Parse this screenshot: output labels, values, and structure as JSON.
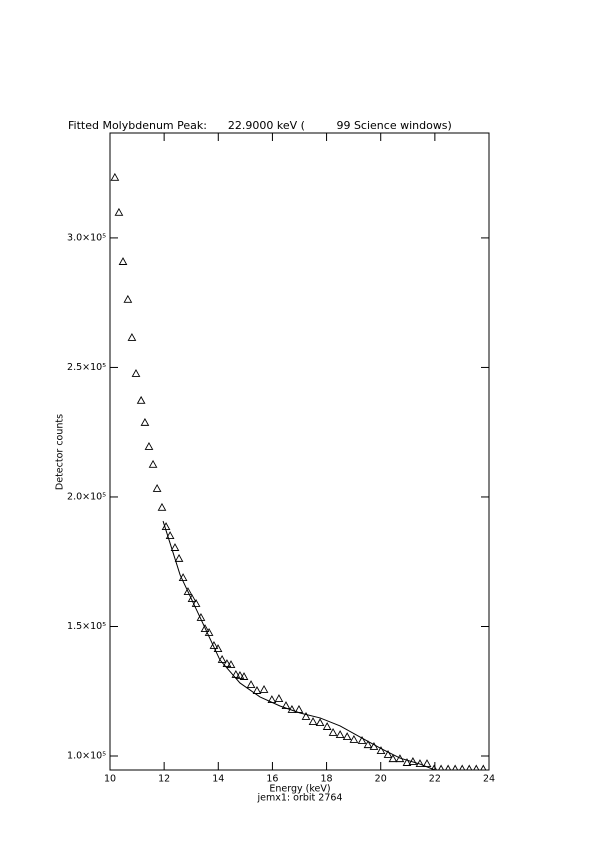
{
  "chart_data": {
    "type": "scatter",
    "title": "Fitted Molybdenum Peak:      22.9000 keV (         99 Science windows)",
    "xlabel": "Energy (keV)",
    "subtitle": "jemx1: orbit 2764",
    "ylabel": "Detector counts",
    "xlim": [
      10,
      24
    ],
    "xticks": [
      10,
      12,
      14,
      16,
      18,
      20,
      22,
      24
    ],
    "ylim": [
      94600,
      340500
    ],
    "yticks": [
      {
        "value": 100000,
        "label": "1.0×10⁵"
      },
      {
        "value": 150000,
        "label": "1.5×10⁵"
      },
      {
        "value": 200000,
        "label": "2.0×10⁵"
      },
      {
        "value": 250000,
        "label": "2.5×10⁵"
      },
      {
        "value": 300000,
        "label": "3.0×10⁵"
      }
    ],
    "series": [
      {
        "marker": "triangle",
        "color": "#000000",
        "x": [
          10.18,
          10.33,
          10.48,
          10.66,
          10.81,
          10.96,
          11.15,
          11.29,
          11.44,
          11.59,
          11.74,
          11.92,
          12.07,
          12.22,
          12.4,
          12.55,
          12.7,
          12.88,
          13.03,
          13.18,
          13.36,
          13.51,
          13.66,
          13.84,
          13.99,
          14.14,
          14.32,
          14.47,
          14.65,
          14.8,
          14.95,
          15.21,
          15.43,
          15.69,
          15.98,
          16.24,
          16.5,
          16.72,
          16.98,
          17.24,
          17.5,
          17.76,
          18.02,
          18.24,
          18.5,
          18.76,
          19.01,
          19.31,
          19.53,
          19.75,
          20.01,
          20.27,
          20.45,
          20.71,
          20.97,
          21.19,
          21.45,
          21.71,
          21.97,
          22.23,
          22.49,
          22.75,
          23.01,
          23.27,
          23.53,
          23.79
        ],
        "values": [
          323200,
          309700,
          290700,
          276100,
          261400,
          247500,
          237100,
          228600,
          219300,
          212400,
          203100,
          195800,
          188400,
          184900,
          180300,
          176100,
          168700,
          163300,
          160600,
          158700,
          153300,
          149000,
          147500,
          142500,
          141300,
          137100,
          135500,
          135100,
          131300,
          130900,
          130500,
          127400,
          125100,
          125500,
          121600,
          122000,
          119300,
          117800,
          117800,
          115100,
          113100,
          112700,
          111200,
          108900,
          108100,
          107300,
          106200,
          105800,
          104200,
          103500,
          101900,
          100400,
          98800,
          98800,
          97300,
          97700,
          96900,
          96900,
          94800,
          94800,
          94800,
          94800,
          94800,
          94800,
          94800,
          94800
        ]
      },
      {
        "style": "line",
        "color": "#000000",
        "x": [
          11.96,
          12.59,
          13.32,
          14.06,
          14.8,
          15.54,
          16.28,
          17.02,
          17.76,
          18.5,
          19.24,
          19.97,
          20.71,
          21.45,
          22.0
        ],
        "values": [
          190700,
          169900,
          153700,
          137100,
          128200,
          122800,
          119300,
          116600,
          114700,
          111600,
          107300,
          103100,
          99200,
          96900,
          94600
        ]
      }
    ]
  }
}
